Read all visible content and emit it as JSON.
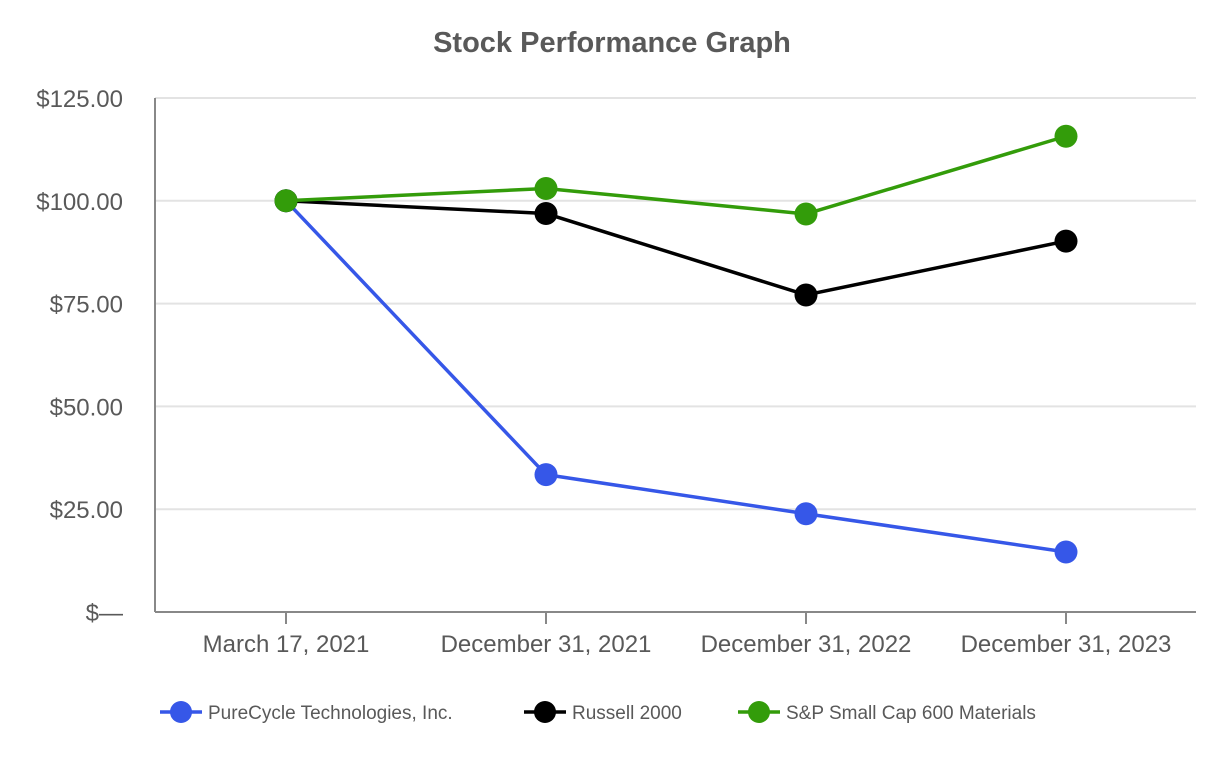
{
  "chart_data": {
    "type": "line",
    "title": "Stock Performance Graph",
    "xlabel": "",
    "ylabel": "",
    "categories": [
      "March 17, 2021",
      "December 31, 2021",
      "December 31, 2022",
      "December 31, 2023"
    ],
    "y_ticks": [
      {
        "value": 0,
        "label": "$—"
      },
      {
        "value": 25,
        "label": "$25.00"
      },
      {
        "value": 50,
        "label": "$50.00"
      },
      {
        "value": 75,
        "label": "$75.00"
      },
      {
        "value": 100,
        "label": "$100.00"
      },
      {
        "value": 125,
        "label": "$125.00"
      }
    ],
    "ylim": [
      0,
      125
    ],
    "grid": true,
    "legend_position": "bottom",
    "series": [
      {
        "name": "PureCycle Technologies, Inc.",
        "color": "#3657e8",
        "values": [
          100,
          33.4,
          23.9,
          14.6
        ]
      },
      {
        "name": "Russell 2000",
        "color": "#000000",
        "values": [
          100,
          96.9,
          77.1,
          90.2
        ]
      },
      {
        "name": "S&P Small Cap 600 Materials",
        "color": "#339c0a",
        "values": [
          100,
          103.0,
          96.8,
          115.7
        ]
      }
    ]
  }
}
